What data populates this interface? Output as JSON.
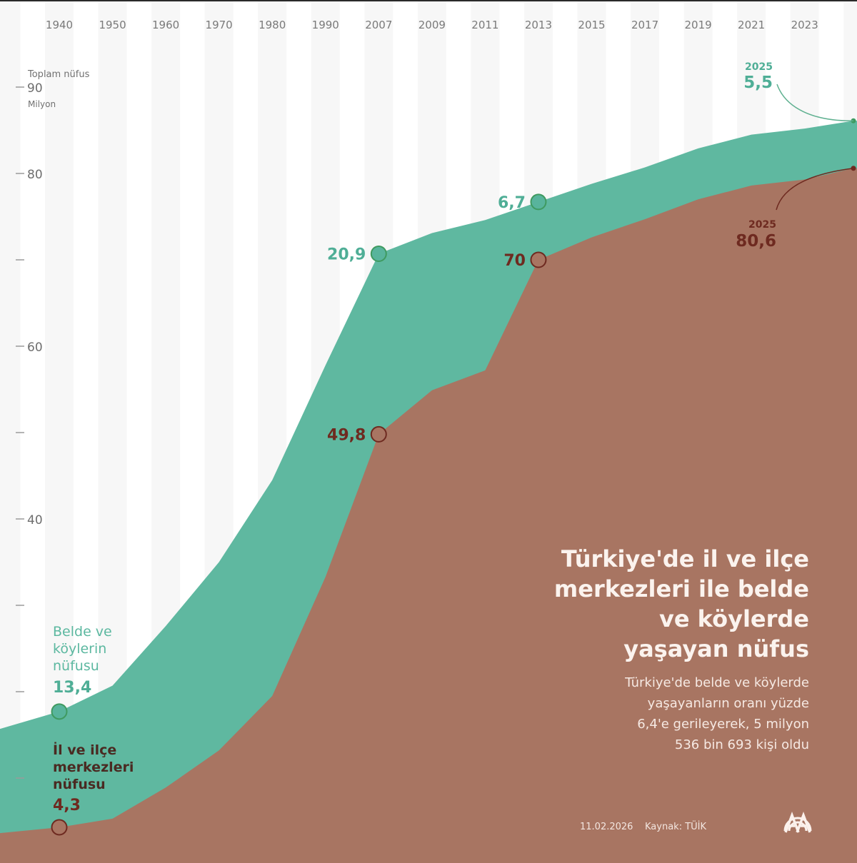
{
  "chart_data": {
    "type": "area",
    "title": "Türkiye'de il ve ilçe merkezleri ile belde ve köylerde yaşayan nüfus",
    "title_lines": [
      "Türkiye'de il ve ilçe",
      "merkezleri ile belde",
      "ve köylerde",
      "yaşayan nüfus"
    ],
    "subtitle_lines": [
      "Türkiye'de belde ve köylerde",
      "yaşayanların oranı yüzde",
      "6,4'e gerileyerek, 5 milyon",
      "536 bin 693 kişi oldu"
    ],
    "ylabel": "Toplam nüfus",
    "yunit": "Milyon",
    "ylim": [
      0,
      100
    ],
    "yticks": [
      {
        "value": 90,
        "label": "90"
      },
      {
        "value": 80,
        "label": "80"
      },
      {
        "value": 70,
        "label": ""
      },
      {
        "value": 60,
        "label": "60"
      },
      {
        "value": 50,
        "label": ""
      },
      {
        "value": 40,
        "label": "40"
      },
      {
        "value": 30,
        "label": ""
      },
      {
        "value": 20,
        "label": ""
      },
      {
        "value": 10,
        "label": ""
      }
    ],
    "categories": [
      "1940",
      "1950",
      "1960",
      "1970",
      "1980",
      "1990",
      "2007",
      "2009",
      "2011",
      "2013",
      "2015",
      "2017",
      "2019",
      "2021",
      "2023",
      "2025"
    ],
    "category_labels_shown": [
      "1940",
      "1950",
      "1960",
      "1970",
      "1980",
      "1990",
      "2007",
      "2009",
      "2011",
      "2013",
      "2015",
      "2017",
      "2019",
      "2021",
      "2023"
    ],
    "stacked": true,
    "series": [
      {
        "name": "İl ve ilçe merkezleri nüfusu",
        "color": "#a87562",
        "values": [
          4.3,
          5.3,
          8.9,
          13.2,
          19.5,
          33.3,
          49.8,
          54.9,
          57.2,
          70.0,
          72.6,
          74.7,
          77.0,
          78.6,
          79.3,
          80.6
        ]
      },
      {
        "name": "Belde ve köylerin nüfusu",
        "color": "#5fb8a0",
        "values": [
          13.4,
          15.4,
          18.7,
          21.8,
          25.0,
          24.5,
          20.9,
          18.2,
          17.4,
          6.7,
          6.2,
          6.0,
          5.9,
          5.9,
          5.9,
          5.5
        ]
      }
    ],
    "annotations": [
      {
        "series": "Belde ve köylerin nüfusu",
        "category": "1940",
        "label": "13,4"
      },
      {
        "series": "İl ve ilçe merkezleri nüfusu",
        "category": "1940",
        "label": "4,3"
      },
      {
        "series": "Belde ve köylerin nüfusu",
        "category": "2007",
        "label": "20,9"
      },
      {
        "series": "İl ve ilçe merkezleri nüfusu",
        "category": "2007",
        "label": "49,8"
      },
      {
        "series": "Belde ve köylerin nüfusu",
        "category": "2013",
        "label": "6,7"
      },
      {
        "series": "İl ve ilçe merkezleri nüfusu",
        "category": "2013",
        "label": "70"
      },
      {
        "series": "Belde ve köylerin nüfusu",
        "category": "2025",
        "label": "5,5",
        "year_label": "2025"
      },
      {
        "series": "İl ve ilçe merkezleri nüfusu",
        "category": "2025",
        "label": "80,6",
        "year_label": "2025"
      }
    ],
    "legend": [
      {
        "series": "Belde ve köylerin nüfusu",
        "lines": [
          "Belde ve",
          "köylerin",
          "nüfusu"
        ],
        "placement": "left"
      },
      {
        "series": "İl ve ilçe merkezleri nüfusu",
        "lines": [
          "İl ve ilçe",
          "merkezleri",
          "nüfusu"
        ],
        "placement": "bottom-left"
      }
    ],
    "grid": "alternating vertical bands"
  },
  "footer": {
    "date": "11.02.2026",
    "source": "Kaynak: TÜİK",
    "logo": "aa-logo-icon"
  },
  "colors": {
    "urban": "#a87562",
    "rural": "#5fb8a0",
    "urban_text": "#6e2a20",
    "rural_text": "#4fae96",
    "band": "#f7f7f7"
  }
}
